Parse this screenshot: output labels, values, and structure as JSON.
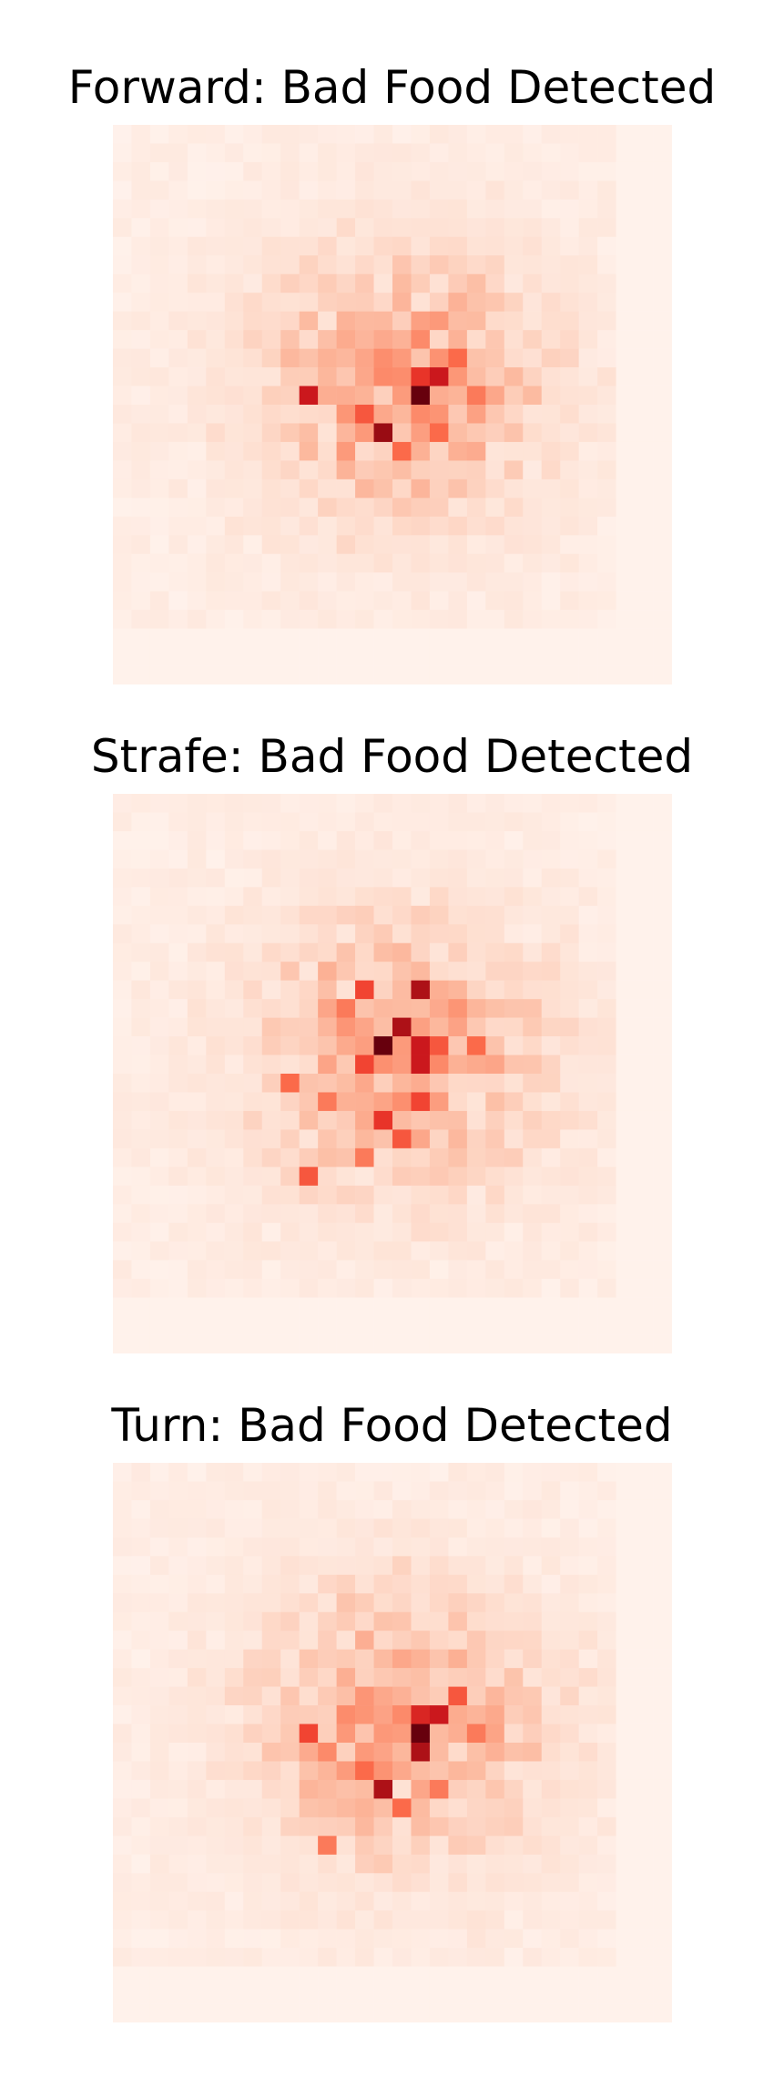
{
  "chart_data": [
    {
      "type": "heatmap",
      "title": "Forward: Bad Food Detected",
      "colormap": "Reds",
      "rows": 30,
      "cols": 30,
      "grid": false,
      "axes_visible": false,
      "hotspots": [
        {
          "row": 14,
          "col": 16,
          "value": 1.0
        },
        {
          "row": 13,
          "col": 17,
          "value": 0.75
        },
        {
          "row": 13,
          "col": 16,
          "value": 0.65
        },
        {
          "row": 16,
          "col": 14,
          "value": 0.9
        },
        {
          "row": 14,
          "col": 10,
          "value": 0.75
        },
        {
          "row": 15,
          "col": 13,
          "value": 0.55
        },
        {
          "row": 12,
          "col": 18,
          "value": 0.5
        },
        {
          "row": 16,
          "col": 17,
          "value": 0.5
        },
        {
          "row": 17,
          "col": 15,
          "value": 0.5
        },
        {
          "row": 14,
          "col": 19,
          "value": 0.45
        },
        {
          "row": 13,
          "col": 14,
          "value": 0.4
        },
        {
          "row": 11,
          "col": 16,
          "value": 0.4
        },
        {
          "row": 15,
          "col": 16,
          "value": 0.4
        },
        {
          "row": 17,
          "col": 12,
          "value": 0.35
        },
        {
          "row": 12,
          "col": 15,
          "value": 0.35
        }
      ]
    },
    {
      "type": "heatmap",
      "title": "Strafe: Bad Food Detected",
      "colormap": "Reds",
      "rows": 30,
      "cols": 30,
      "grid": false,
      "axes_visible": false,
      "hotspots": [
        {
          "row": 13,
          "col": 14,
          "value": 1.0
        },
        {
          "row": 12,
          "col": 15,
          "value": 0.85
        },
        {
          "row": 14,
          "col": 16,
          "value": 0.75
        },
        {
          "row": 10,
          "col": 16,
          "value": 0.85
        },
        {
          "row": 13,
          "col": 16,
          "value": 0.75
        },
        {
          "row": 14,
          "col": 13,
          "value": 0.6
        },
        {
          "row": 17,
          "col": 14,
          "value": 0.65
        },
        {
          "row": 16,
          "col": 16,
          "value": 0.6
        },
        {
          "row": 18,
          "col": 15,
          "value": 0.55
        },
        {
          "row": 10,
          "col": 13,
          "value": 0.6
        },
        {
          "row": 13,
          "col": 17,
          "value": 0.55
        },
        {
          "row": 13,
          "col": 19,
          "value": 0.5
        },
        {
          "row": 15,
          "col": 9,
          "value": 0.5
        },
        {
          "row": 20,
          "col": 10,
          "value": 0.55
        },
        {
          "row": 16,
          "col": 11,
          "value": 0.45
        },
        {
          "row": 11,
          "col": 12,
          "value": 0.45
        },
        {
          "row": 19,
          "col": 13,
          "value": 0.45
        }
      ]
    },
    {
      "type": "heatmap",
      "title": "Turn: Bad Food Detected",
      "colormap": "Reds",
      "rows": 30,
      "cols": 30,
      "grid": false,
      "axes_visible": false,
      "hotspots": [
        {
          "row": 14,
          "col": 16,
          "value": 1.0
        },
        {
          "row": 15,
          "col": 16,
          "value": 0.85
        },
        {
          "row": 13,
          "col": 16,
          "value": 0.7
        },
        {
          "row": 13,
          "col": 17,
          "value": 0.75
        },
        {
          "row": 12,
          "col": 18,
          "value": 0.55
        },
        {
          "row": 17,
          "col": 14,
          "value": 0.85
        },
        {
          "row": 14,
          "col": 10,
          "value": 0.6
        },
        {
          "row": 16,
          "col": 13,
          "value": 0.5
        },
        {
          "row": 18,
          "col": 15,
          "value": 0.5
        },
        {
          "row": 14,
          "col": 19,
          "value": 0.45
        },
        {
          "row": 17,
          "col": 17,
          "value": 0.45
        },
        {
          "row": 15,
          "col": 11,
          "value": 0.4
        },
        {
          "row": 20,
          "col": 11,
          "value": 0.45
        },
        {
          "row": 13,
          "col": 15,
          "value": 0.4
        }
      ]
    }
  ]
}
